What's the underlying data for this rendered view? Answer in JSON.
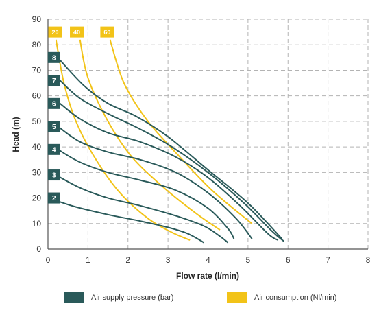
{
  "chart_data": {
    "type": "line",
    "title": "",
    "xlabel": "Flow rate (l/min)",
    "ylabel": "Head (m)",
    "xlim": [
      0,
      8
    ],
    "ylim": [
      0,
      90
    ],
    "xticks": [
      0,
      1,
      2,
      3,
      4,
      5,
      6,
      7,
      8
    ],
    "yticks": [
      0,
      10,
      20,
      30,
      40,
      50,
      60,
      70,
      80,
      90
    ],
    "grid": true,
    "legend_position": "bottom",
    "colors": {
      "pressure": "#2a5a5a",
      "air": "#f2c318"
    },
    "legend": [
      {
        "label": "Air supply pressure (bar)",
        "color": "#2a5a5a"
      },
      {
        "label": "Air consumption (Nl/min)",
        "color": "#f2c318"
      }
    ],
    "pressure_series": [
      {
        "name": "2",
        "label_at": [
          0.15,
          20
        ],
        "points": [
          [
            0.2,
            19
          ],
          [
            0.7,
            16.5
          ],
          [
            1.5,
            13.5
          ],
          [
            2.3,
            11
          ],
          [
            3.0,
            8.5
          ],
          [
            3.5,
            6
          ],
          [
            3.9,
            2.5
          ]
        ]
      },
      {
        "name": "3",
        "label_at": [
          0.15,
          29
        ],
        "points": [
          [
            0.2,
            29
          ],
          [
            0.8,
            24
          ],
          [
            1.5,
            20
          ],
          [
            2.3,
            17
          ],
          [
            3.2,
            13
          ],
          [
            3.9,
            9
          ],
          [
            4.3,
            5
          ],
          [
            4.5,
            2.5
          ]
        ]
      },
      {
        "name": "4",
        "label_at": [
          0.15,
          39
        ],
        "points": [
          [
            0.25,
            39
          ],
          [
            0.8,
            34
          ],
          [
            1.5,
            30
          ],
          [
            2.3,
            27
          ],
          [
            3.2,
            23
          ],
          [
            4.0,
            16
          ],
          [
            4.5,
            8
          ],
          [
            4.65,
            4
          ]
        ]
      },
      {
        "name": "5",
        "label_at": [
          0.15,
          48
        ],
        "points": [
          [
            0.25,
            48
          ],
          [
            0.8,
            42
          ],
          [
            1.5,
            38
          ],
          [
            2.3,
            35
          ],
          [
            3.2,
            30
          ],
          [
            4.0,
            22
          ],
          [
            4.7,
            12
          ],
          [
            5.1,
            4
          ]
        ]
      },
      {
        "name": "6",
        "label_at": [
          0.15,
          57
        ],
        "points": [
          [
            0.3,
            57
          ],
          [
            0.8,
            51
          ],
          [
            1.5,
            45.5
          ],
          [
            2.3,
            42
          ],
          [
            3.2,
            36
          ],
          [
            4.0,
            28
          ],
          [
            4.8,
            17
          ],
          [
            5.5,
            6
          ],
          [
            5.75,
            3.5
          ]
        ]
      },
      {
        "name": "7",
        "label_at": [
          0.15,
          66
        ],
        "points": [
          [
            0.3,
            66
          ],
          [
            0.8,
            59
          ],
          [
            1.5,
            53
          ],
          [
            2.3,
            47
          ],
          [
            3.1,
            40
          ],
          [
            4.0,
            30
          ],
          [
            4.9,
            18
          ],
          [
            5.6,
            7
          ],
          [
            5.9,
            3
          ]
        ]
      },
      {
        "name": "8",
        "label_at": [
          0.15,
          75
        ],
        "points": [
          [
            0.3,
            74
          ],
          [
            0.9,
            64
          ],
          [
            1.5,
            57
          ],
          [
            2.2,
            52
          ],
          [
            3.0,
            44
          ],
          [
            4.0,
            31
          ],
          [
            5.0,
            18
          ],
          [
            5.85,
            4
          ]
        ]
      }
    ],
    "air_series": [
      {
        "name": "20",
        "label_at": [
          0.18,
          85
        ],
        "points": [
          [
            0.2,
            82
          ],
          [
            0.4,
            65
          ],
          [
            0.7,
            50
          ],
          [
            1.2,
            35
          ],
          [
            1.8,
            22
          ],
          [
            2.5,
            12
          ],
          [
            3.1,
            6.5
          ],
          [
            3.55,
            3.5
          ]
        ]
      },
      {
        "name": "40",
        "label_at": [
          0.72,
          85
        ],
        "points": [
          [
            0.8,
            82
          ],
          [
            1.0,
            67
          ],
          [
            1.5,
            50
          ],
          [
            2.1,
            36
          ],
          [
            2.9,
            24
          ],
          [
            3.7,
            14
          ],
          [
            4.3,
            7.5
          ]
        ]
      },
      {
        "name": "60",
        "label_at": [
          1.48,
          85
        ],
        "points": [
          [
            1.55,
            82
          ],
          [
            1.9,
            65
          ],
          [
            2.5,
            50
          ],
          [
            3.3,
            36
          ],
          [
            4.1,
            23
          ],
          [
            4.9,
            12.5
          ],
          [
            5.1,
            10
          ]
        ]
      }
    ]
  }
}
